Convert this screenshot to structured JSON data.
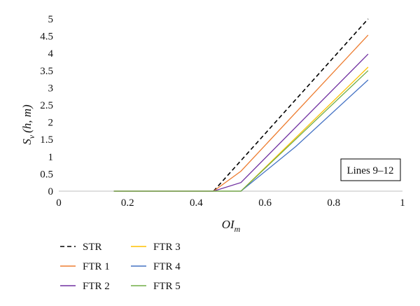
{
  "chart_data": {
    "type": "line",
    "title": "",
    "xlabel": {
      "main": "OI",
      "sub": "m"
    },
    "ylabel": {
      "main": "S",
      "sub": "v",
      "args": "(h, m)"
    },
    "xlim": [
      0,
      1
    ],
    "ylim": [
      0,
      5
    ],
    "xticks": [
      "0",
      "0.2",
      "0.4",
      "0.6",
      "0.8",
      "1"
    ],
    "yticks": [
      "0",
      "0.5",
      "1",
      "1.5",
      "2",
      "2.5",
      "3",
      "3.5",
      "4",
      "4.5",
      "5"
    ],
    "grid": false,
    "legend_position": "bottom-left",
    "annotation": "Lines 9–12",
    "series": [
      {
        "name": "STR",
        "color": "#000000",
        "dashed": true,
        "x": [
          0.45,
          0.9
        ],
        "y": [
          0,
          5.0
        ]
      },
      {
        "name": "FTR 1",
        "color": "#ed7d31",
        "dashed": false,
        "x": [
          0.16,
          0.45,
          0.53,
          0.9
        ],
        "y": [
          0,
          0,
          0.58,
          4.53
        ]
      },
      {
        "name": "FTR 2",
        "color": "#7030a0",
        "dashed": false,
        "x": [
          0.16,
          0.45,
          0.53,
          0.9
        ],
        "y": [
          0,
          0,
          0.25,
          3.98
        ]
      },
      {
        "name": "FTR 3",
        "color": "#ffc000",
        "dashed": false,
        "x": [
          0.16,
          0.53,
          0.9
        ],
        "y": [
          0,
          0,
          3.6
        ]
      },
      {
        "name": "FTR 4",
        "color": "#4472c4",
        "dashed": false,
        "x": [
          0.16,
          0.53,
          0.69,
          0.9
        ],
        "y": [
          0,
          0,
          1.3,
          3.23
        ]
      },
      {
        "name": "FTR 5",
        "color": "#70ad47",
        "dashed": false,
        "x": [
          0.16,
          0.53,
          0.9
        ],
        "y": [
          0,
          0,
          3.5
        ]
      }
    ]
  }
}
